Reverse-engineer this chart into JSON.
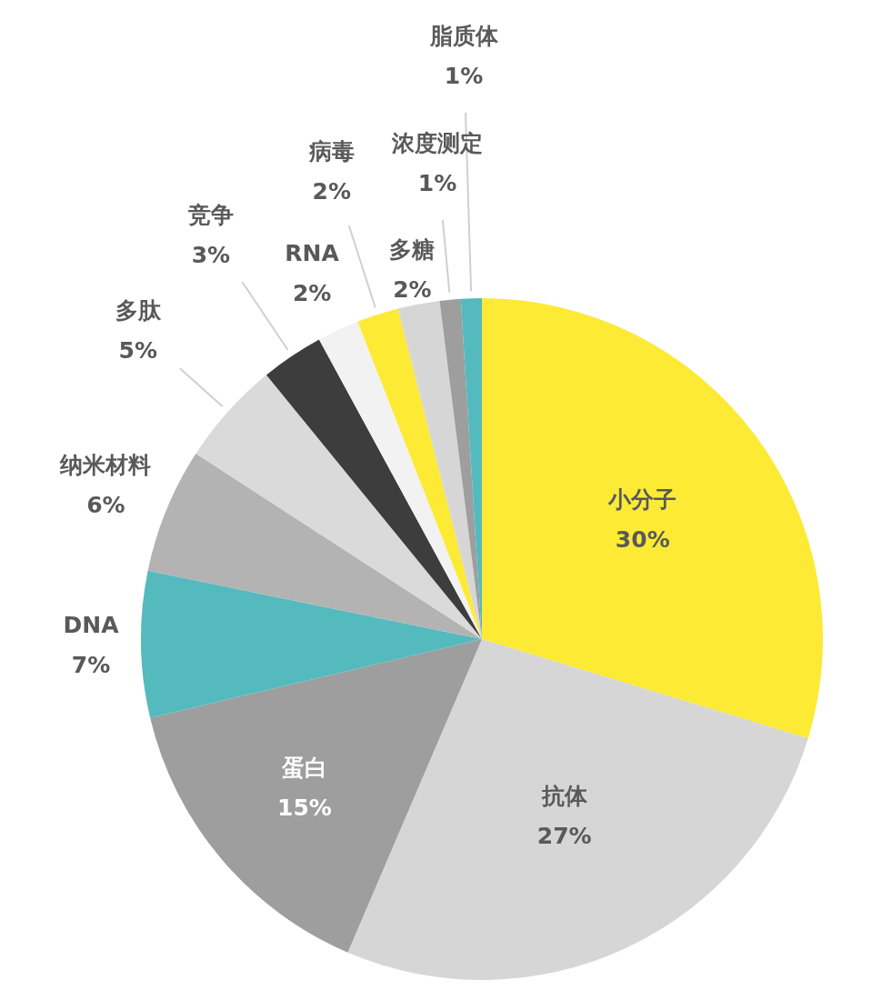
{
  "chart_data": {
    "type": "pie",
    "categories": [
      "小分子",
      "抗体",
      "蛋白",
      "DNA",
      "纳米材料",
      "多肽",
      "竞争",
      "RNA",
      "病毒",
      "多糖",
      "浓度测定",
      "脂质体"
    ],
    "values": [
      30,
      27,
      15,
      7,
      6,
      5,
      3,
      2,
      2,
      2,
      1,
      1
    ],
    "value_labels": [
      "30%",
      "27%",
      "15%",
      "7%",
      "6%",
      "5%",
      "3%",
      "2%",
      "2%",
      "2%",
      "1%",
      "1%"
    ],
    "colors": [
      "#fdea35",
      "#d6d6d6",
      "#9e9e9e",
      "#55babd",
      "#b3b3b3",
      "#dadada",
      "#3d3d3d",
      "#f2f2f2",
      "#fdea35",
      "#d6d6d6",
      "#9e9e9e",
      "#55babd"
    ]
  }
}
